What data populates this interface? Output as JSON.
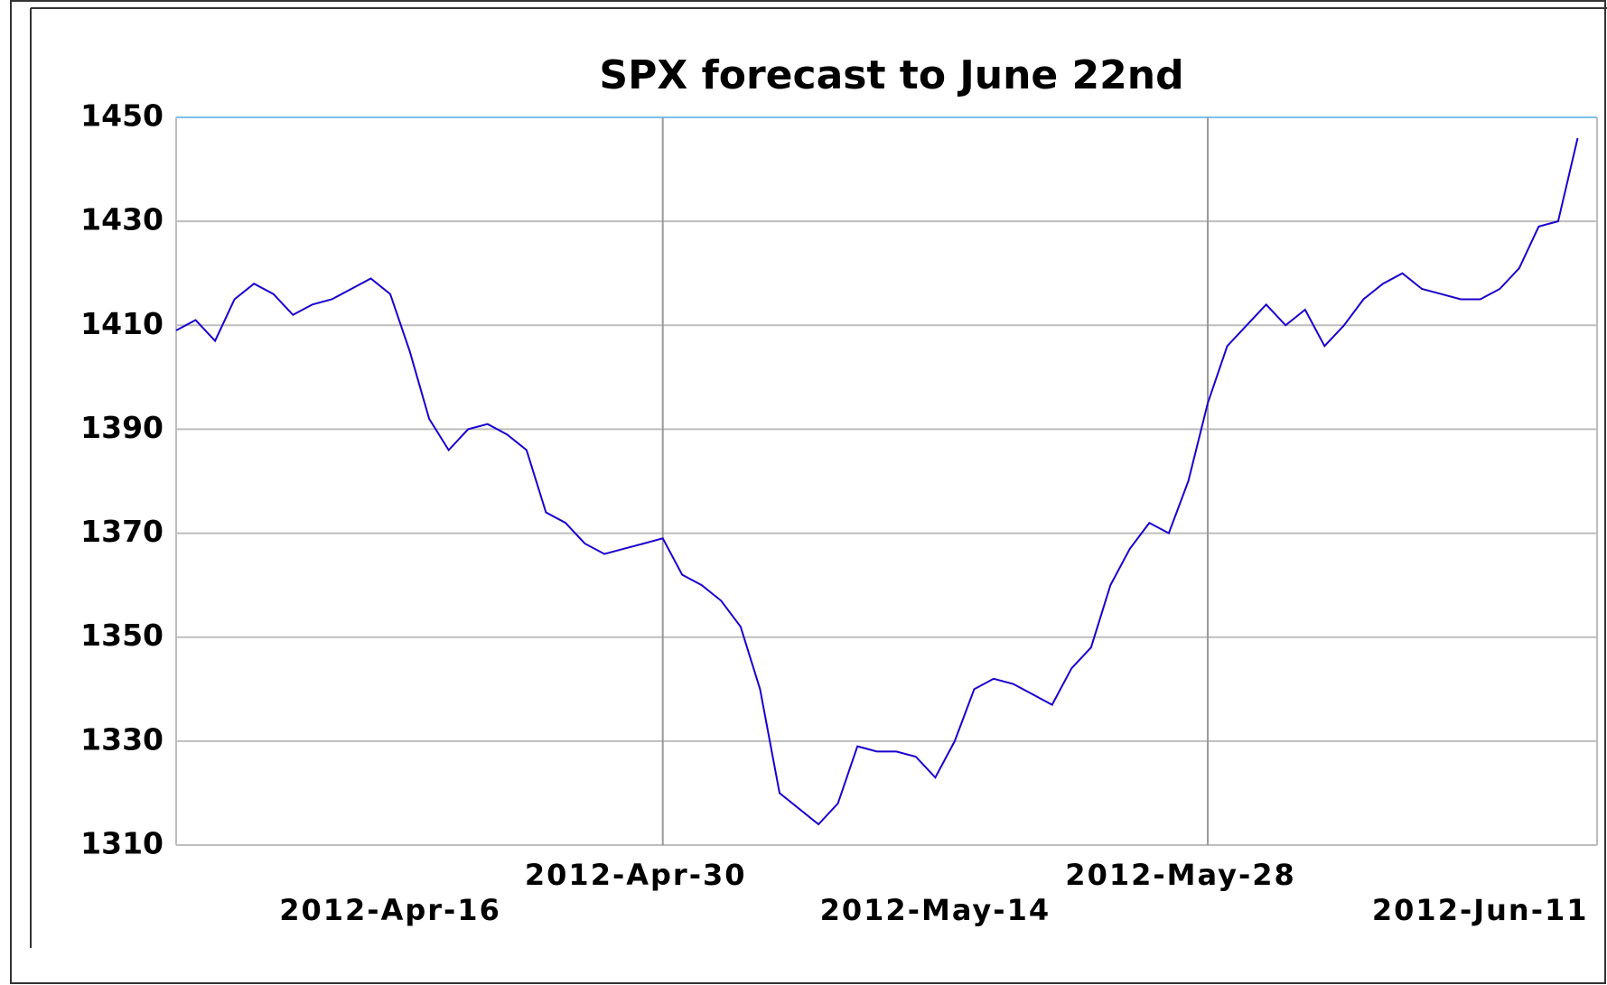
{
  "chart_data": {
    "type": "line",
    "title": "SPX forecast to June 22nd",
    "x": [
      "2012-04-05",
      "2012-04-06",
      "2012-04-07",
      "2012-04-08",
      "2012-04-09",
      "2012-04-10",
      "2012-04-11",
      "2012-04-12",
      "2012-04-13",
      "2012-04-14",
      "2012-04-15",
      "2012-04-16",
      "2012-04-17",
      "2012-04-18",
      "2012-04-19",
      "2012-04-20",
      "2012-04-21",
      "2012-04-22",
      "2012-04-23",
      "2012-04-24",
      "2012-04-25",
      "2012-04-26",
      "2012-04-27",
      "2012-04-28",
      "2012-04-29",
      "2012-04-30",
      "2012-05-01",
      "2012-05-02",
      "2012-05-03",
      "2012-05-04",
      "2012-05-05",
      "2012-05-06",
      "2012-05-07",
      "2012-05-08",
      "2012-05-09",
      "2012-05-10",
      "2012-05-11",
      "2012-05-12",
      "2012-05-13",
      "2012-05-14",
      "2012-05-15",
      "2012-05-16",
      "2012-05-17",
      "2012-05-18",
      "2012-05-19",
      "2012-05-20",
      "2012-05-21",
      "2012-05-22",
      "2012-05-23",
      "2012-05-24",
      "2012-05-25",
      "2012-05-26",
      "2012-05-27",
      "2012-05-28",
      "2012-05-29",
      "2012-05-30",
      "2012-05-31",
      "2012-06-01",
      "2012-06-02",
      "2012-06-03",
      "2012-06-04",
      "2012-06-05",
      "2012-06-06",
      "2012-06-07",
      "2012-06-08",
      "2012-06-09",
      "2012-06-10",
      "2012-06-11",
      "2012-06-12",
      "2012-06-13",
      "2012-06-14",
      "2012-06-15",
      "2012-06-16"
    ],
    "series": [
      {
        "color": "#1a00cc",
        "values": [
          1409,
          1411,
          1407,
          1415,
          1418,
          1416,
          1412,
          1414,
          1415,
          1417,
          1419,
          1416,
          1405,
          1392,
          1386,
          1390,
          1391,
          1389,
          1386,
          1374,
          1372,
          1368,
          1366,
          1367,
          1368,
          1369,
          1362,
          1360,
          1357,
          1352,
          1340,
          1320,
          1317,
          1314,
          1318,
          1329,
          1328,
          1328,
          1327,
          1323,
          1330,
          1340,
          1342,
          1341,
          1339,
          1337,
          1344,
          1348,
          1360,
          1367,
          1372,
          1370,
          1380,
          1395,
          1406,
          1410,
          1414,
          1410,
          1413,
          1406,
          1410,
          1415,
          1418,
          1420,
          1417,
          1416,
          1415,
          1415,
          1417,
          1421,
          1429,
          1430,
          1446
        ]
      }
    ],
    "xlim": [
      "2012-04-05",
      "2012-06-17"
    ],
    "xticks": [
      {
        "value": "2012-04-16",
        "label": "2012-Apr-16"
      },
      {
        "value": "2012-04-30",
        "label": "2012-Apr-30"
      },
      {
        "value": "2012-05-14",
        "label": "2012-May-14"
      },
      {
        "value": "2012-05-28",
        "label": "2012-May-28"
      },
      {
        "value": "2012-06-11",
        "label": "2012-Jun-11"
      }
    ],
    "ylim": [
      1310,
      1450
    ],
    "yticks": [
      1310,
      1330,
      1350,
      1370,
      1390,
      1410,
      1430,
      1450
    ],
    "grid": true
  }
}
